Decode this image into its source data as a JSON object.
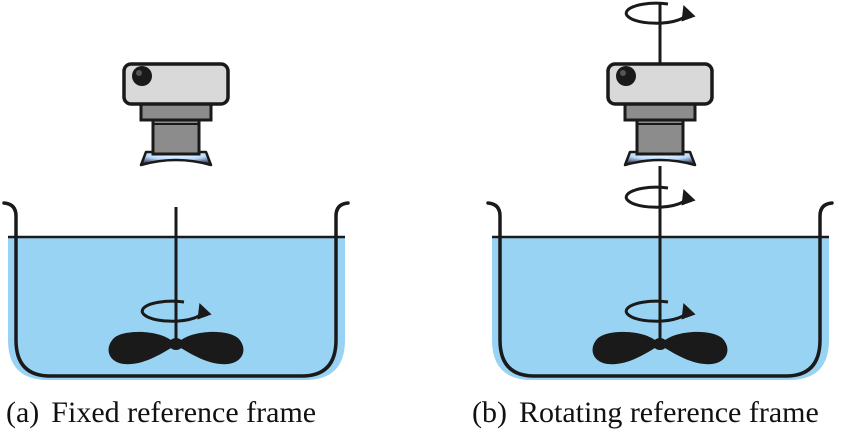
{
  "panels": [
    {
      "tag": "(a)",
      "label": "Fixed reference frame"
    },
    {
      "tag": "(b)",
      "label": "Rotating reference frame"
    }
  ],
  "colors": {
    "liquid": "#98d3f3",
    "outline": "#1a1a1a",
    "camera_body": "#d9d9d9",
    "camera_mount": "#8c8c8c",
    "lens_glow": "#bcdcff",
    "impeller": "#1a1a1a"
  }
}
